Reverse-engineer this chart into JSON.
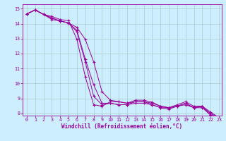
{
  "xlabel": "Windchill (Refroidissement éolien,°C)",
  "bg_color": "#cceeff",
  "line_color": "#990099",
  "grid_color": "#aacccc",
  "xlim": [
    -0.5,
    23.3
  ],
  "ylim": [
    7.85,
    15.3
  ],
  "xticks": [
    0,
    1,
    2,
    3,
    4,
    5,
    6,
    7,
    8,
    9,
    10,
    11,
    12,
    13,
    14,
    15,
    16,
    17,
    18,
    19,
    20,
    21,
    22,
    23
  ],
  "yticks": [
    8,
    9,
    10,
    11,
    12,
    13,
    14,
    15
  ],
  "series": [
    [
      14.65,
      14.92,
      14.62,
      14.48,
      14.28,
      14.2,
      12.95,
      10.45,
      8.58,
      8.48,
      8.78,
      8.78,
      8.68,
      8.88,
      8.88,
      8.75,
      8.48,
      8.38,
      8.58,
      8.78,
      8.48,
      8.48,
      7.88,
      7.72
    ],
    [
      14.65,
      14.92,
      14.62,
      14.38,
      14.18,
      14.05,
      13.55,
      11.62,
      9.92,
      8.68,
      8.68,
      8.58,
      8.58,
      8.68,
      8.68,
      8.58,
      8.38,
      8.38,
      8.48,
      8.58,
      8.38,
      8.48,
      7.98,
      7.72
    ],
    [
      14.65,
      14.92,
      14.62,
      14.38,
      14.18,
      14.05,
      13.75,
      12.95,
      11.45,
      9.45,
      8.88,
      8.78,
      8.68,
      8.78,
      8.78,
      8.68,
      8.48,
      8.38,
      8.48,
      8.68,
      8.38,
      8.48,
      8.08,
      7.72
    ],
    [
      14.65,
      14.92,
      14.62,
      14.28,
      14.18,
      14.05,
      13.45,
      11.45,
      9.15,
      8.58,
      8.68,
      8.58,
      8.58,
      8.78,
      8.78,
      8.58,
      8.38,
      8.28,
      8.48,
      8.68,
      8.38,
      8.38,
      7.88,
      7.72
    ]
  ]
}
